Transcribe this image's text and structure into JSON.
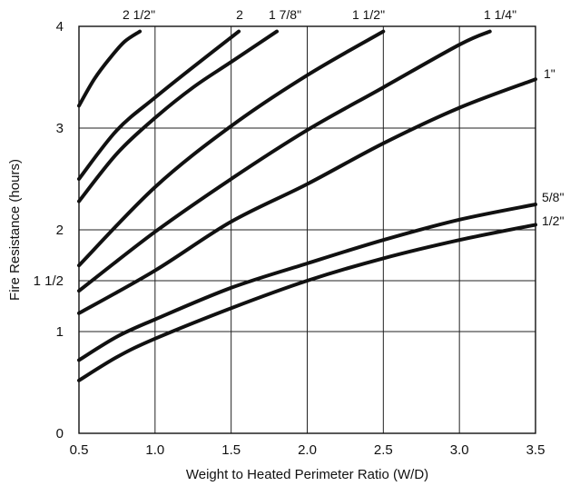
{
  "chart_data": {
    "type": "line",
    "xlabel": "Weight to Heated Perimeter Ratio (W/D)",
    "ylabel": "Fire Resistance (hours)",
    "xlim": [
      0.5,
      3.5
    ],
    "ylim": [
      0,
      4
    ],
    "x_ticks": [
      0.5,
      1.0,
      1.5,
      2.0,
      2.5,
      3.0,
      3.5
    ],
    "x_tick_labels": [
      "0.5",
      "1.0",
      "1.5",
      "2.0",
      "2.5",
      "3.0",
      "3.5"
    ],
    "y_ticks": [
      0,
      1,
      1.5,
      2,
      3,
      4
    ],
    "y_tick_labels": [
      "0",
      "1",
      "1 1/2",
      "2",
      "3",
      "4"
    ],
    "grid": true,
    "series": [
      {
        "name": "1/2\"",
        "x": [
          0.5,
          0.75,
          1.0,
          1.5,
          2.0,
          2.5,
          3.0,
          3.5
        ],
        "y": [
          0.52,
          0.75,
          0.93,
          1.23,
          1.5,
          1.72,
          1.9,
          2.05
        ]
      },
      {
        "name": "5/8\"",
        "x": [
          0.5,
          0.75,
          1.0,
          1.5,
          2.0,
          2.5,
          3.0,
          3.5
        ],
        "y": [
          0.72,
          0.95,
          1.12,
          1.43,
          1.67,
          1.9,
          2.1,
          2.25
        ]
      },
      {
        "name": "1\"",
        "x": [
          0.5,
          1.0,
          1.5,
          2.0,
          2.5,
          3.0,
          3.5
        ],
        "y": [
          1.18,
          1.6,
          2.08,
          2.45,
          2.85,
          3.2,
          3.48
        ]
      },
      {
        "name": "1 1/4\"",
        "x": [
          0.5,
          1.0,
          1.5,
          2.0,
          2.5,
          3.0,
          3.2
        ],
        "y": [
          1.4,
          1.98,
          2.5,
          2.98,
          3.4,
          3.82,
          3.95
        ]
      },
      {
        "name": "1 1/2\"",
        "x": [
          0.5,
          1.0,
          1.5,
          2.0,
          2.5
        ],
        "y": [
          1.65,
          2.42,
          3.02,
          3.52,
          3.95
        ]
      },
      {
        "name": "1 7/8\"",
        "x": [
          0.5,
          0.75,
          1.0,
          1.25,
          1.5,
          1.8
        ],
        "y": [
          2.28,
          2.75,
          3.1,
          3.4,
          3.65,
          3.95
        ]
      },
      {
        "name": "2",
        "x": [
          0.5,
          0.75,
          1.0,
          1.25,
          1.55
        ],
        "y": [
          2.5,
          2.98,
          3.3,
          3.6,
          3.95
        ]
      },
      {
        "name": "2 1/2\"",
        "x": [
          0.5,
          0.6,
          0.7,
          0.8,
          0.9
        ],
        "y": [
          3.22,
          3.48,
          3.68,
          3.85,
          3.95
        ]
      }
    ]
  }
}
